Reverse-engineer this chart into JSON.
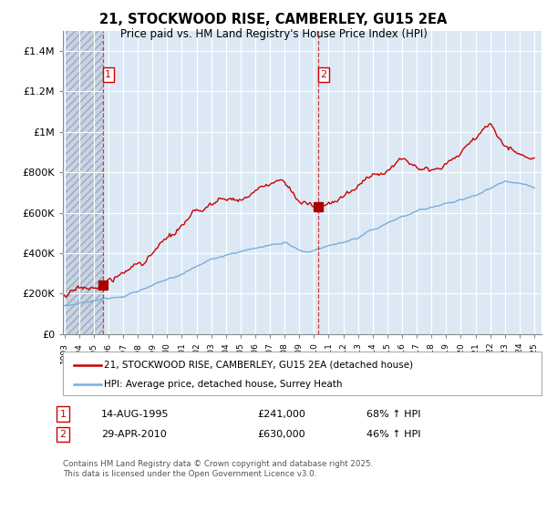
{
  "title": "21, STOCKWOOD RISE, CAMBERLEY, GU15 2EA",
  "subtitle": "Price paid vs. HM Land Registry's House Price Index (HPI)",
  "sale1_price": 241000,
  "sale1_label": "1",
  "sale2_price": 630000,
  "sale2_label": "2",
  "sale1_year": 1995.625,
  "sale2_year": 2010.292,
  "legend_entry1": "21, STOCKWOOD RISE, CAMBERLEY, GU15 2EA (detached house)",
  "legend_entry2": "HPI: Average price, detached house, Surrey Heath",
  "table_row1_num": "1",
  "table_row1_date": "14-AUG-1995",
  "table_row1_price": "£241,000",
  "table_row1_hpi": "68% ↑ HPI",
  "table_row2_num": "2",
  "table_row2_date": "29-APR-2010",
  "table_row2_price": "£630,000",
  "table_row2_hpi": "46% ↑ HPI",
  "footnote": "Contains HM Land Registry data © Crown copyright and database right 2025.\nThis data is licensed under the Open Government Licence v3.0.",
  "line_color_house": "#cc0000",
  "line_color_hpi": "#7aaddc",
  "marker_color": "#aa0000",
  "chart_bg": "#dce9f5",
  "hatch_color": "#c0c8d8",
  "grid_color": "#ffffff",
  "ylim_max": 1500000,
  "yticks": [
    0,
    200000,
    400000,
    600000,
    800000,
    1000000,
    1200000,
    1400000
  ],
  "ytick_labels": [
    "£0",
    "£200K",
    "£400K",
    "£600K",
    "£800K",
    "£1M",
    "£1.2M",
    "£1.4M"
  ],
  "xstart": 1993,
  "xend": 2025
}
